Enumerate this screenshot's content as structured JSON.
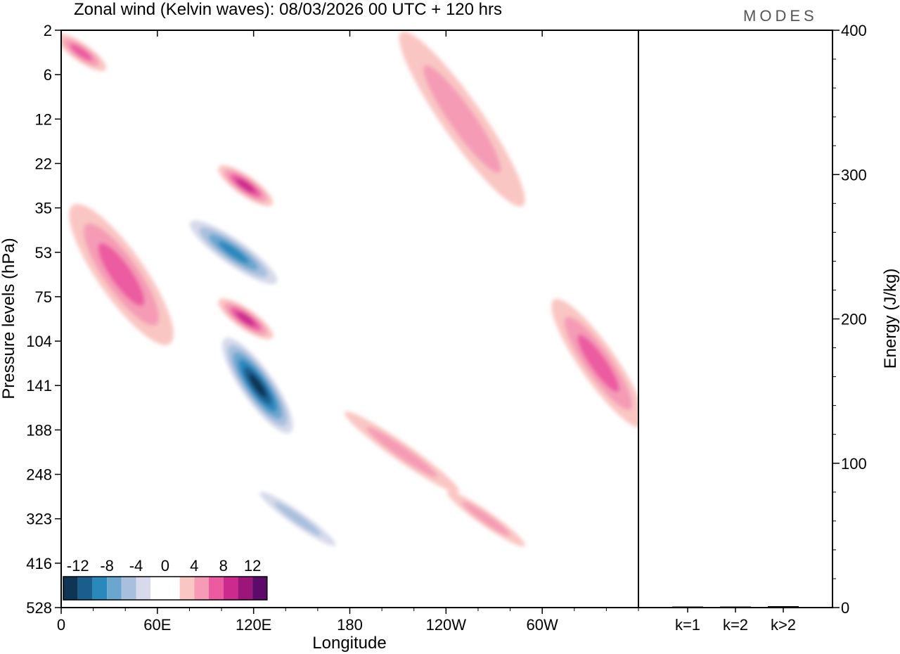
{
  "title": "Zonal wind (Kelvin waves):  08/03/2026  00 UTC  + 120 hrs",
  "brand": "MODES",
  "chart_data": [
    {
      "type": "heatmap",
      "title": "Zonal wind (Kelvin waves):  08/03/2026  00 UTC  + 120 hrs",
      "xlabel": "Longitude",
      "ylabel": "Pressure levels (hPa)",
      "x_ticks": [
        "0",
        "60E",
        "120E",
        "180",
        "120W",
        "60W"
      ],
      "x_tick_degrees": [
        0,
        60,
        120,
        180,
        240,
        300
      ],
      "xlim": [
        0,
        360
      ],
      "y_ticks": [
        "2",
        "6",
        "12",
        "22",
        "35",
        "53",
        "75",
        "104",
        "141",
        "188",
        "248",
        "323",
        "416",
        "528"
      ],
      "color_levels": [
        -12,
        -8,
        -4,
        0,
        4,
        8,
        12
      ],
      "colorbar_labels": [
        "-12",
        "-8",
        "-4",
        "0",
        "4",
        "8",
        "12"
      ],
      "colorbar_colors": [
        "#0f3554",
        "#1a5e8e",
        "#2b88bd",
        "#6aa6cf",
        "#a8c0dd",
        "#d6daea",
        "#ffffff",
        "#ffffff",
        "#f9c6c3",
        "#f59bb5",
        "#ec5ba0",
        "#cc2a8d",
        "#9c1578",
        "#5d0a6a"
      ],
      "features": [
        {
          "sign": "positive",
          "lon": [
            0,
            25
          ],
          "level": [
            "2",
            "6"
          ],
          "peak": 6
        },
        {
          "sign": "positive",
          "lon": [
            100,
            130
          ],
          "level": [
            "22",
            "35"
          ],
          "peak": 10
        },
        {
          "sign": "negative",
          "lon": [
            90,
            125
          ],
          "level": [
            "35",
            "75"
          ],
          "peak": -10
        },
        {
          "sign": "positive",
          "lon": [
            5,
            70
          ],
          "level": [
            "35",
            "104"
          ],
          "peak": 7
        },
        {
          "sign": "positive",
          "lon": [
            100,
            130
          ],
          "level": [
            "75",
            "104"
          ],
          "peak": 10
        },
        {
          "sign": "negative",
          "lon": [
            100,
            145
          ],
          "level": [
            "104",
            "188"
          ],
          "peak": -14
        },
        {
          "sign": "positive",
          "lon": [
            200,
            225
          ],
          "level": [
            "141",
            "323"
          ],
          "peak": 4
        },
        {
          "sign": "positive",
          "lon": [
            255,
            275
          ],
          "level": [
            "248",
            "416"
          ],
          "peak": 4
        },
        {
          "sign": "positive",
          "lon": [
            310,
            360
          ],
          "level": [
            "75",
            "188"
          ],
          "peak": 6
        },
        {
          "sign": "positive",
          "lon": [
            190,
            310
          ],
          "level": [
            "6",
            "22"
          ],
          "peak": 4
        },
        {
          "sign": "negative",
          "lon": [
            140,
            155
          ],
          "level": [
            "248",
            "416"
          ],
          "peak": -4
        }
      ]
    },
    {
      "type": "bar",
      "categories": [
        "k=1",
        "k=2",
        "k>2"
      ],
      "values": [
        0,
        0,
        1
      ],
      "ylabel": "Energy (J/kg)",
      "ylim": [
        0,
        400
      ],
      "y_ticks": [
        "0",
        "100",
        "200",
        "300",
        "400"
      ]
    }
  ]
}
